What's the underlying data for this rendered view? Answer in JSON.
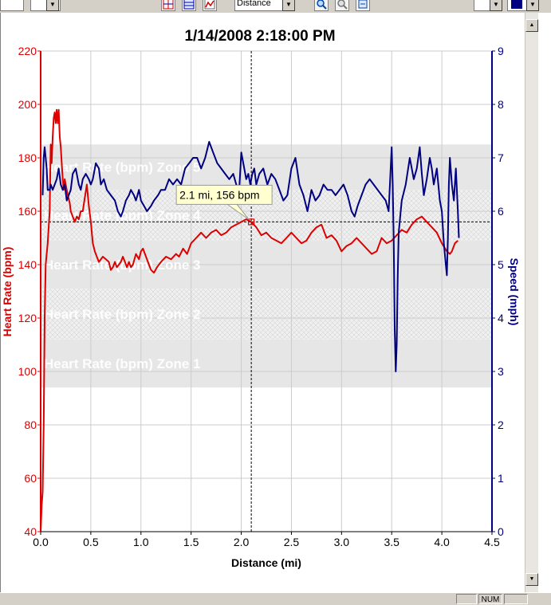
{
  "toolbar": {
    "xaxis_select_value": "Distance",
    "icons": [
      "grid-icon",
      "overlay-icon",
      "chart-line-icon",
      "zoom-in-icon",
      "zoom-out-icon",
      "zoom-fit-icon"
    ]
  },
  "statusbar": {
    "num_indicator": "NUM"
  },
  "colors": {
    "heart_rate": "#dd0000",
    "speed": "#000080",
    "zone_band": "#e6e6e6",
    "grid": "#cccccc"
  },
  "chart_data": {
    "type": "line",
    "title": "1/14/2008 2:18:00 PM",
    "xlabel": "Distance (mi)",
    "xlim": [
      0,
      4.5
    ],
    "x_ticks": [
      "0.0",
      "0.5",
      "1.0",
      "1.5",
      "2.0",
      "2.5",
      "3.0",
      "3.5",
      "4.0",
      "4.5"
    ],
    "y_left": {
      "label": "Heart Rate (bpm)",
      "lim": [
        40,
        220
      ],
      "ticks": [
        "40",
        "60",
        "80",
        "100",
        "120",
        "140",
        "160",
        "180",
        "200",
        "220"
      ]
    },
    "y_right": {
      "label": "Speed (mph)",
      "lim": [
        0,
        9
      ],
      "ticks": [
        "0",
        "1",
        "2",
        "3",
        "4",
        "5",
        "6",
        "7",
        "8",
        "9"
      ]
    },
    "zones": [
      {
        "label": "Heart Rate (bpm) Zone 1",
        "range": [
          94,
          112
        ]
      },
      {
        "label": "Heart Rate (bpm) Zone 2",
        "range": [
          112,
          131
        ]
      },
      {
        "label": "Heart Rate (bpm) Zone 3",
        "range": [
          131,
          149
        ]
      },
      {
        "label": "Heart Rate (bpm) Zone 4",
        "range": [
          149,
          168
        ]
      },
      {
        "label": "Heart Rate (bpm) Zone 5",
        "range": [
          168,
          185
        ]
      }
    ],
    "cursor": {
      "x": 2.1,
      "y": 156,
      "tooltip": "2.1 mi, 156 bpm"
    },
    "grid": true,
    "series": [
      {
        "name": "Heart Rate (bpm)",
        "axis": "left",
        "x": [
          0.0,
          0.01,
          0.02,
          0.03,
          0.04,
          0.05,
          0.07,
          0.09,
          0.1,
          0.11,
          0.12,
          0.13,
          0.14,
          0.15,
          0.16,
          0.17,
          0.18,
          0.19,
          0.2,
          0.21,
          0.22,
          0.23,
          0.24,
          0.25,
          0.27,
          0.29,
          0.3,
          0.32,
          0.34,
          0.36,
          0.38,
          0.4,
          0.42,
          0.44,
          0.46,
          0.48,
          0.5,
          0.52,
          0.54,
          0.56,
          0.58,
          0.6,
          0.62,
          0.65,
          0.68,
          0.7,
          0.72,
          0.74,
          0.76,
          0.78,
          0.8,
          0.82,
          0.84,
          0.86,
          0.88,
          0.9,
          0.92,
          0.95,
          0.98,
          1.0,
          1.02,
          1.04,
          1.06,
          1.08,
          1.1,
          1.13,
          1.16,
          1.2,
          1.25,
          1.3,
          1.35,
          1.38,
          1.42,
          1.46,
          1.5,
          1.55,
          1.6,
          1.65,
          1.7,
          1.75,
          1.8,
          1.85,
          1.9,
          1.95,
          2.0,
          2.05,
          2.1,
          2.15,
          2.2,
          2.25,
          2.3,
          2.35,
          2.4,
          2.45,
          2.5,
          2.55,
          2.6,
          2.65,
          2.7,
          2.75,
          2.8,
          2.85,
          2.9,
          2.95,
          3.0,
          3.05,
          3.1,
          3.15,
          3.2,
          3.25,
          3.3,
          3.35,
          3.4,
          3.45,
          3.5,
          3.55,
          3.6,
          3.65,
          3.7,
          3.75,
          3.8,
          3.85,
          3.9,
          3.95,
          4.0,
          4.05,
          4.08,
          4.1,
          4.13,
          4.16
        ],
        "y": [
          40,
          50,
          55,
          80,
          120,
          140,
          148,
          160,
          185,
          178,
          188,
          195,
          197,
          193,
          198,
          193,
          198,
          188,
          184,
          178,
          172,
          168,
          172,
          170,
          166,
          163,
          160,
          158,
          156,
          158,
          157,
          160,
          160,
          165,
          170,
          162,
          156,
          148,
          145,
          143,
          141,
          142,
          143,
          142,
          141,
          138,
          139,
          141,
          139,
          140,
          141,
          143,
          141,
          139,
          141,
          139,
          140,
          144,
          142,
          145,
          146,
          144,
          142,
          140,
          138,
          137,
          139,
          141,
          143,
          142,
          144,
          143,
          146,
          144,
          148,
          150,
          152,
          150,
          152,
          153,
          151,
          152,
          154,
          155,
          156,
          157,
          156,
          154,
          151,
          152,
          150,
          149,
          148,
          150,
          152,
          150,
          148,
          149,
          152,
          154,
          155,
          150,
          151,
          149,
          145,
          147,
          148,
          150,
          148,
          146,
          144,
          145,
          150,
          148,
          149,
          151,
          153,
          152,
          155,
          157,
          158,
          156,
          154,
          152,
          148,
          145,
          144,
          145,
          148,
          149
        ],
        "color": "#dd0000"
      },
      {
        "name": "Speed (mph)",
        "axis": "right",
        "x": [
          0.02,
          0.03,
          0.04,
          0.05,
          0.06,
          0.07,
          0.09,
          0.1,
          0.12,
          0.14,
          0.16,
          0.18,
          0.2,
          0.22,
          0.24,
          0.26,
          0.28,
          0.3,
          0.32,
          0.35,
          0.38,
          0.4,
          0.42,
          0.45,
          0.48,
          0.5,
          0.52,
          0.55,
          0.58,
          0.6,
          0.63,
          0.66,
          0.7,
          0.74,
          0.77,
          0.8,
          0.82,
          0.85,
          0.88,
          0.9,
          0.93,
          0.95,
          0.98,
          1.0,
          1.03,
          1.06,
          1.1,
          1.13,
          1.17,
          1.2,
          1.24,
          1.28,
          1.32,
          1.36,
          1.4,
          1.44,
          1.48,
          1.52,
          1.56,
          1.6,
          1.64,
          1.68,
          1.7,
          1.72,
          1.76,
          1.8,
          1.84,
          1.88,
          1.92,
          1.95,
          1.98,
          2.0,
          2.02,
          2.05,
          2.07,
          2.09,
          2.11,
          2.13,
          2.15,
          2.18,
          2.22,
          2.26,
          2.3,
          2.34,
          2.38,
          2.42,
          2.46,
          2.5,
          2.54,
          2.58,
          2.62,
          2.66,
          2.7,
          2.74,
          2.78,
          2.82,
          2.86,
          2.9,
          2.94,
          2.98,
          3.02,
          3.06,
          3.1,
          3.13,
          3.16,
          3.2,
          3.24,
          3.28,
          3.32,
          3.36,
          3.4,
          3.44,
          3.47,
          3.5,
          3.51,
          3.52,
          3.53,
          3.54,
          3.55,
          3.56,
          3.57,
          3.6,
          3.64,
          3.68,
          3.72,
          3.75,
          3.78,
          3.8,
          3.82,
          3.85,
          3.88,
          3.9,
          3.92,
          3.95,
          3.98,
          4.0,
          4.02,
          4.04,
          4.05,
          4.06,
          4.07,
          4.08,
          4.1,
          4.12,
          4.14,
          4.16,
          4.17
        ],
        "y": [
          6.3,
          7.0,
          7.2,
          7.0,
          6.8,
          6.4,
          6.4,
          6.5,
          6.4,
          6.5,
          6.6,
          6.8,
          6.5,
          6.4,
          6.5,
          6.2,
          6.3,
          6.4,
          6.7,
          6.8,
          6.5,
          6.4,
          6.6,
          6.7,
          6.6,
          6.5,
          6.6,
          6.9,
          6.8,
          6.5,
          6.6,
          6.4,
          6.3,
          6.2,
          6.0,
          5.9,
          6.0,
          6.2,
          6.3,
          6.4,
          6.3,
          6.2,
          6.4,
          6.2,
          6.1,
          6.0,
          6.1,
          6.2,
          6.3,
          6.4,
          6.4,
          6.6,
          6.5,
          6.6,
          6.5,
          6.8,
          6.9,
          7.0,
          7.0,
          6.8,
          7.0,
          7.3,
          7.2,
          7.1,
          6.9,
          6.8,
          6.7,
          6.6,
          6.7,
          6.5,
          6.4,
          7.1,
          6.9,
          6.6,
          6.7,
          6.5,
          6.7,
          6.8,
          6.5,
          6.7,
          6.8,
          6.5,
          6.7,
          6.6,
          6.4,
          6.2,
          6.3,
          6.8,
          7.0,
          6.5,
          6.3,
          6.0,
          6.4,
          6.2,
          6.3,
          6.5,
          6.4,
          6.4,
          6.3,
          6.4,
          6.5,
          6.3,
          6.0,
          5.9,
          6.1,
          6.3,
          6.5,
          6.6,
          6.5,
          6.4,
          6.3,
          6.2,
          6.0,
          7.2,
          6.5,
          5.5,
          3.8,
          3.0,
          3.5,
          4.8,
          5.6,
          6.2,
          6.5,
          7.0,
          6.6,
          6.8,
          7.2,
          6.7,
          6.3,
          6.6,
          7.0,
          6.8,
          6.5,
          6.8,
          6.2,
          6.0,
          5.4,
          5.0,
          4.8,
          5.5,
          6.5,
          7.0,
          6.5,
          6.2,
          6.8,
          6.0,
          5.5
        ],
        "color": "#000080"
      }
    ]
  }
}
